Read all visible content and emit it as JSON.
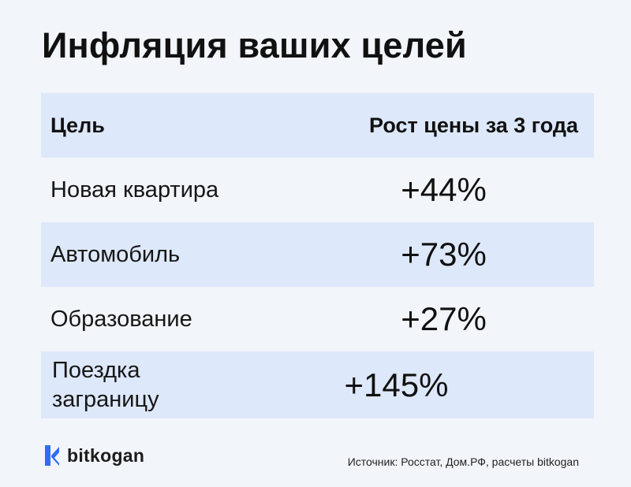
{
  "title": "Инфляция ваших целей",
  "table": {
    "headers": {
      "goal": "Цель",
      "growth": "Рост цены за 3 года"
    },
    "rows": [
      {
        "goal": "Новая квартира",
        "growth": "+44%"
      },
      {
        "goal": "Автомобиль",
        "growth": "+73%"
      },
      {
        "goal": "Образование",
        "growth": "+27%"
      },
      {
        "goal": "Поездка заграницу",
        "growth": "+145%"
      }
    ]
  },
  "footer": {
    "logo_text": "bitkogan",
    "logo_icon": "bitkogan-logo-icon",
    "source": "Источник: Росстат, Дом.РФ, расчеты bitkogan"
  },
  "colors": {
    "background": "#f2f5fa",
    "row_highlight": "#dde8fa",
    "logo_blue": "#2f6df6",
    "text": "#111111"
  }
}
